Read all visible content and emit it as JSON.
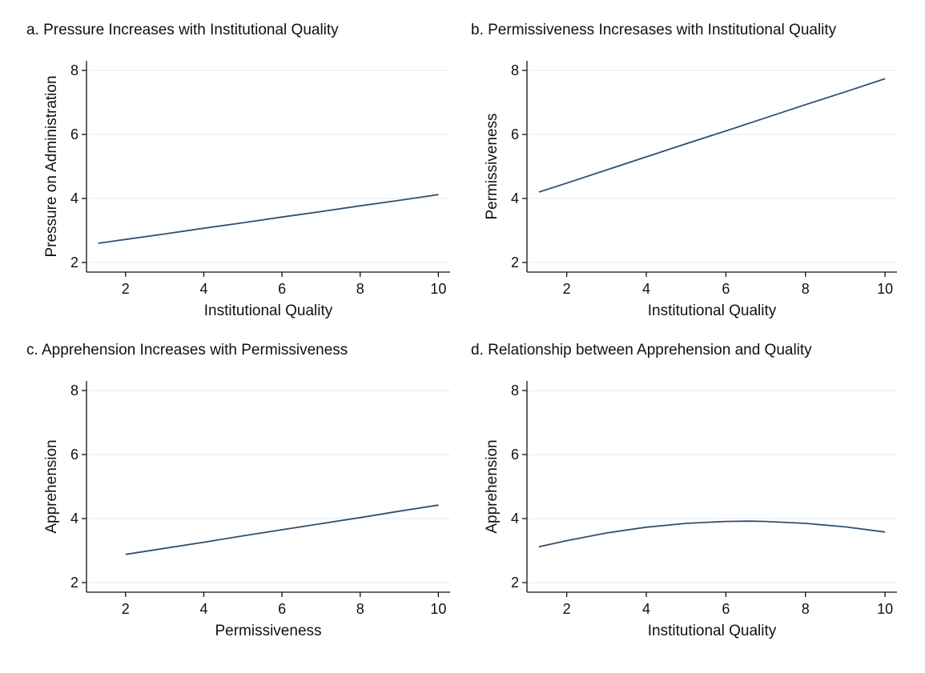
{
  "chart_data": [
    {
      "type": "line",
      "title": "a. Pressure Increases with Institutional Quality",
      "xlabel": "Institutional Quality",
      "ylabel": "Pressure on Administration",
      "xlim": [
        1,
        10.3
      ],
      "ylim": [
        1.7,
        8.3
      ],
      "xticks": [
        2,
        4,
        6,
        8,
        10
      ],
      "yticks": [
        2,
        4,
        6,
        8
      ],
      "grid": true,
      "x": [
        1.3,
        2,
        3,
        4,
        5,
        6,
        7,
        8,
        9,
        10
      ],
      "y": [
        2.6,
        2.72,
        2.89,
        3.07,
        3.24,
        3.42,
        3.59,
        3.77,
        3.94,
        4.12
      ],
      "color": "#33506b"
    },
    {
      "type": "line",
      "title": "b. Permissiveness Incresases with Institutional Quality",
      "xlabel": "Institutional Quality",
      "ylabel": "Permissiveness",
      "xlim": [
        1,
        10.3
      ],
      "ylim": [
        1.7,
        8.3
      ],
      "xticks": [
        2,
        4,
        6,
        8,
        10
      ],
      "yticks": [
        2,
        4,
        6,
        8
      ],
      "grid": true,
      "x": [
        1.3,
        2,
        3,
        4,
        5,
        6,
        7,
        8,
        9,
        10
      ],
      "y": [
        4.2,
        4.48,
        4.89,
        5.3,
        5.71,
        6.11,
        6.52,
        6.93,
        7.33,
        7.74
      ],
      "color": "#33506b"
    },
    {
      "type": "line",
      "title": "c. Apprehension Increases with Permissiveness",
      "xlabel": "Permissiveness",
      "ylabel": "Apprehension",
      "xlim": [
        1,
        10.3
      ],
      "ylim": [
        1.7,
        8.3
      ],
      "xticks": [
        2,
        4,
        6,
        8,
        10
      ],
      "yticks": [
        2,
        4,
        6,
        8
      ],
      "grid": true,
      "x": [
        2,
        3,
        4,
        5,
        6,
        7,
        8,
        9,
        10
      ],
      "y": [
        2.88,
        3.07,
        3.26,
        3.46,
        3.65,
        3.84,
        4.03,
        4.23,
        4.42
      ],
      "color": "#33506b"
    },
    {
      "type": "line",
      "title": "d. Relationship between Apprehension and Quality",
      "xlabel": "Institutional Quality",
      "ylabel": "Apprehension",
      "xlim": [
        1,
        10.3
      ],
      "ylim": [
        1.7,
        8.3
      ],
      "xticks": [
        2,
        4,
        6,
        8,
        10
      ],
      "yticks": [
        2,
        4,
        6,
        8
      ],
      "grid": true,
      "x": [
        1.3,
        2,
        3,
        4,
        5,
        6,
        6.6,
        7,
        8,
        9,
        10
      ],
      "y": [
        3.12,
        3.31,
        3.55,
        3.73,
        3.85,
        3.91,
        3.92,
        3.91,
        3.85,
        3.74,
        3.58
      ],
      "color": "#33506b"
    }
  ]
}
